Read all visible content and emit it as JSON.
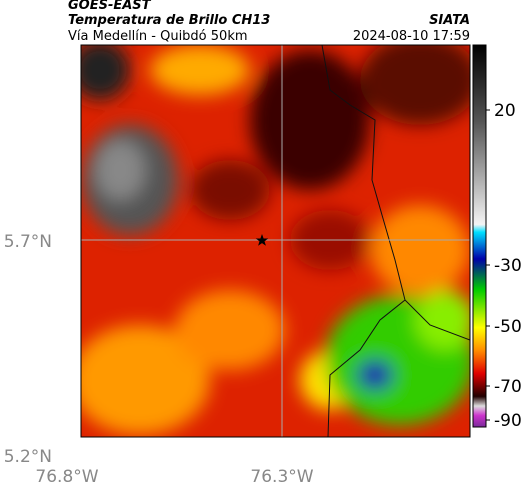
{
  "header": {
    "satellite": "GOES-EAST",
    "product": "Temperatura de Brillo CH13",
    "route": "Vía Medellín - Quibdó 50km",
    "source": "SIATA",
    "timestamp": "2024-08-10 17:59"
  },
  "axes": {
    "latitude_labels": [
      "5.7°N",
      "5.2°N"
    ],
    "longitude_labels": [
      "76.8°W",
      "76.3°W"
    ]
  },
  "colorbar": {
    "tick_labels": [
      20,
      -30,
      -50,
      -70,
      -90
    ]
  }
}
